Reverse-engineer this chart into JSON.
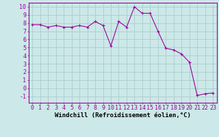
{
  "x": [
    0,
    1,
    2,
    3,
    4,
    5,
    6,
    7,
    8,
    9,
    10,
    11,
    12,
    13,
    14,
    15,
    16,
    17,
    18,
    19,
    20,
    21,
    22,
    23
  ],
  "y": [
    7.8,
    7.8,
    7.5,
    7.7,
    7.5,
    7.5,
    7.7,
    7.5,
    8.2,
    7.7,
    5.2,
    8.2,
    7.5,
    10.0,
    9.2,
    9.2,
    7.0,
    4.9,
    4.7,
    4.2,
    3.2,
    -0.9,
    -0.7,
    -0.6
  ],
  "line_color": "#990099",
  "marker": "+",
  "marker_size": 3,
  "bg_color": "#cce8e8",
  "grid_color": "#aacccc",
  "xlabel": "Windchill (Refroidissement éolien,°C)",
  "ylabel_ticks": [
    -1,
    0,
    1,
    2,
    3,
    4,
    5,
    6,
    7,
    8,
    9,
    10
  ],
  "xlim": [
    -0.5,
    23.5
  ],
  "ylim": [
    -1.8,
    10.5
  ],
  "label_fontsize": 6.5,
  "tick_fontsize": 6
}
